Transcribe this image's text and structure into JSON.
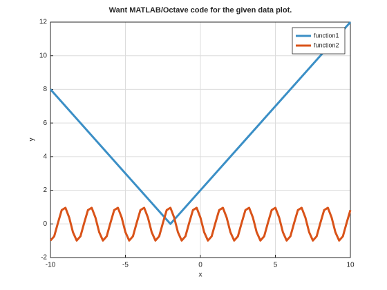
{
  "chart_data": {
    "type": "line",
    "title": "Want MATLAB/Octave code for the given data plot.",
    "x_label": "x",
    "y_label": "y",
    "xlim": [
      -10,
      10
    ],
    "xticks": [
      -10,
      -5,
      0,
      5,
      10
    ],
    "ylim": [
      -2,
      12
    ],
    "yticks": [
      -2,
      0,
      2,
      4,
      6,
      8,
      10,
      12
    ],
    "grid": true,
    "legend": "northeast",
    "series": [
      {
        "name": "function1",
        "color": "#3b8fc6",
        "x": [
          -10,
          -2,
          10
        ],
        "values": [
          8,
          0,
          12
        ]
      },
      {
        "name": "function2",
        "color": "#d95319",
        "x": [
          -10,
          -9.75,
          -9.5,
          -9.25,
          -9,
          -8.75,
          -8.5,
          -8.25,
          -8,
          -7.75,
          -7.5,
          -7.25,
          -7,
          -6.75,
          -6.5,
          -6.25,
          -6,
          -5.75,
          -5.5,
          -5.25,
          -5,
          -4.75,
          -4.5,
          -4.25,
          -4,
          -3.75,
          -3.5,
          -3.25,
          -3,
          -2.75,
          -2.5,
          -2.25,
          -2,
          -1.75,
          -1.5,
          -1.25,
          -1,
          -0.75,
          -0.5,
          -0.25,
          0,
          0.25,
          0.5,
          0.75,
          1,
          1.25,
          1.5,
          1.75,
          2,
          2.25,
          2.5,
          2.75,
          3,
          3.25,
          3.5,
          3.75,
          4,
          4.25,
          4.5,
          4.75,
          5,
          5.25,
          5.5,
          5.75,
          6,
          6.25,
          6.5,
          6.75,
          7,
          7.25,
          7.5,
          7.75,
          8,
          8.25,
          8.5,
          8.75,
          9,
          9.25,
          9.5,
          9.75,
          10
        ],
        "values": [
          -0.99,
          -0.74,
          0.06,
          0.82,
          0.96,
          0.38,
          -0.49,
          -0.99,
          -0.74,
          0.06,
          0.82,
          0.96,
          0.38,
          -0.49,
          -0.99,
          -0.74,
          0.06,
          0.82,
          0.96,
          0.38,
          -0.49,
          -0.99,
          -0.74,
          0.06,
          0.82,
          0.96,
          0.38,
          -0.49,
          -0.99,
          -0.74,
          0.06,
          0.82,
          0.96,
          0.38,
          -0.49,
          -0.99,
          -0.74,
          0.06,
          0.82,
          0.96,
          0.38,
          -0.49,
          -0.99,
          -0.74,
          0.06,
          0.82,
          0.96,
          0.38,
          -0.49,
          -0.99,
          -0.74,
          0.06,
          0.82,
          0.96,
          0.38,
          -0.49,
          -0.99,
          -0.74,
          0.06,
          0.82,
          0.96,
          0.38,
          -0.49,
          -0.99,
          -0.74,
          0.06,
          0.82,
          0.96,
          0.38,
          -0.49,
          -0.99,
          -0.74,
          0.06,
          0.82,
          0.96,
          0.38,
          -0.49,
          -0.99,
          -0.74,
          0.06,
          0.82
        ]
      }
    ]
  }
}
